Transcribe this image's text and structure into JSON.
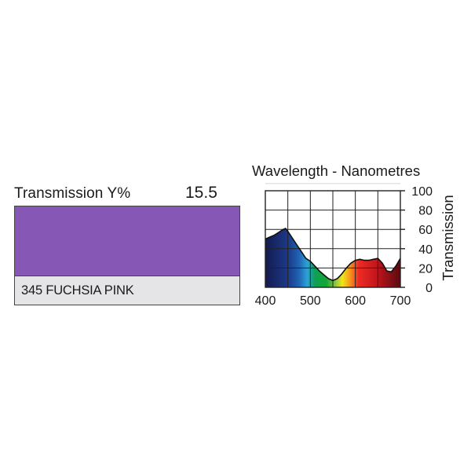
{
  "filter": {
    "transmission_label": "Transmission Y%",
    "transmission_value": "15.5",
    "name": "345 FUCHSIA PINK",
    "swatch_color": "#8757b6",
    "name_box_color": "#e5e5e7"
  },
  "chart_data": {
    "type": "area",
    "title": "Wavelength - Nanometres",
    "ylabel": "Transmission",
    "xlim": [
      400,
      700
    ],
    "ylim": [
      0,
      100
    ],
    "x_ticks": [
      400,
      500,
      600,
      700
    ],
    "y_ticks": [
      0,
      20,
      40,
      60,
      80,
      100
    ],
    "grid": true,
    "x": [
      400,
      410,
      420,
      430,
      440,
      445,
      450,
      460,
      470,
      480,
      490,
      500,
      510,
      520,
      530,
      540,
      550,
      560,
      570,
      580,
      590,
      600,
      610,
      620,
      630,
      640,
      650,
      660,
      670,
      680,
      690,
      700
    ],
    "y": [
      50,
      52,
      54,
      57,
      60,
      61,
      58,
      51,
      44,
      37,
      30,
      27,
      22,
      17,
      13,
      9,
      7,
      9,
      14,
      20,
      25,
      28,
      29,
      28,
      28,
      29,
      30,
      25,
      17,
      16,
      22,
      30
    ]
  }
}
